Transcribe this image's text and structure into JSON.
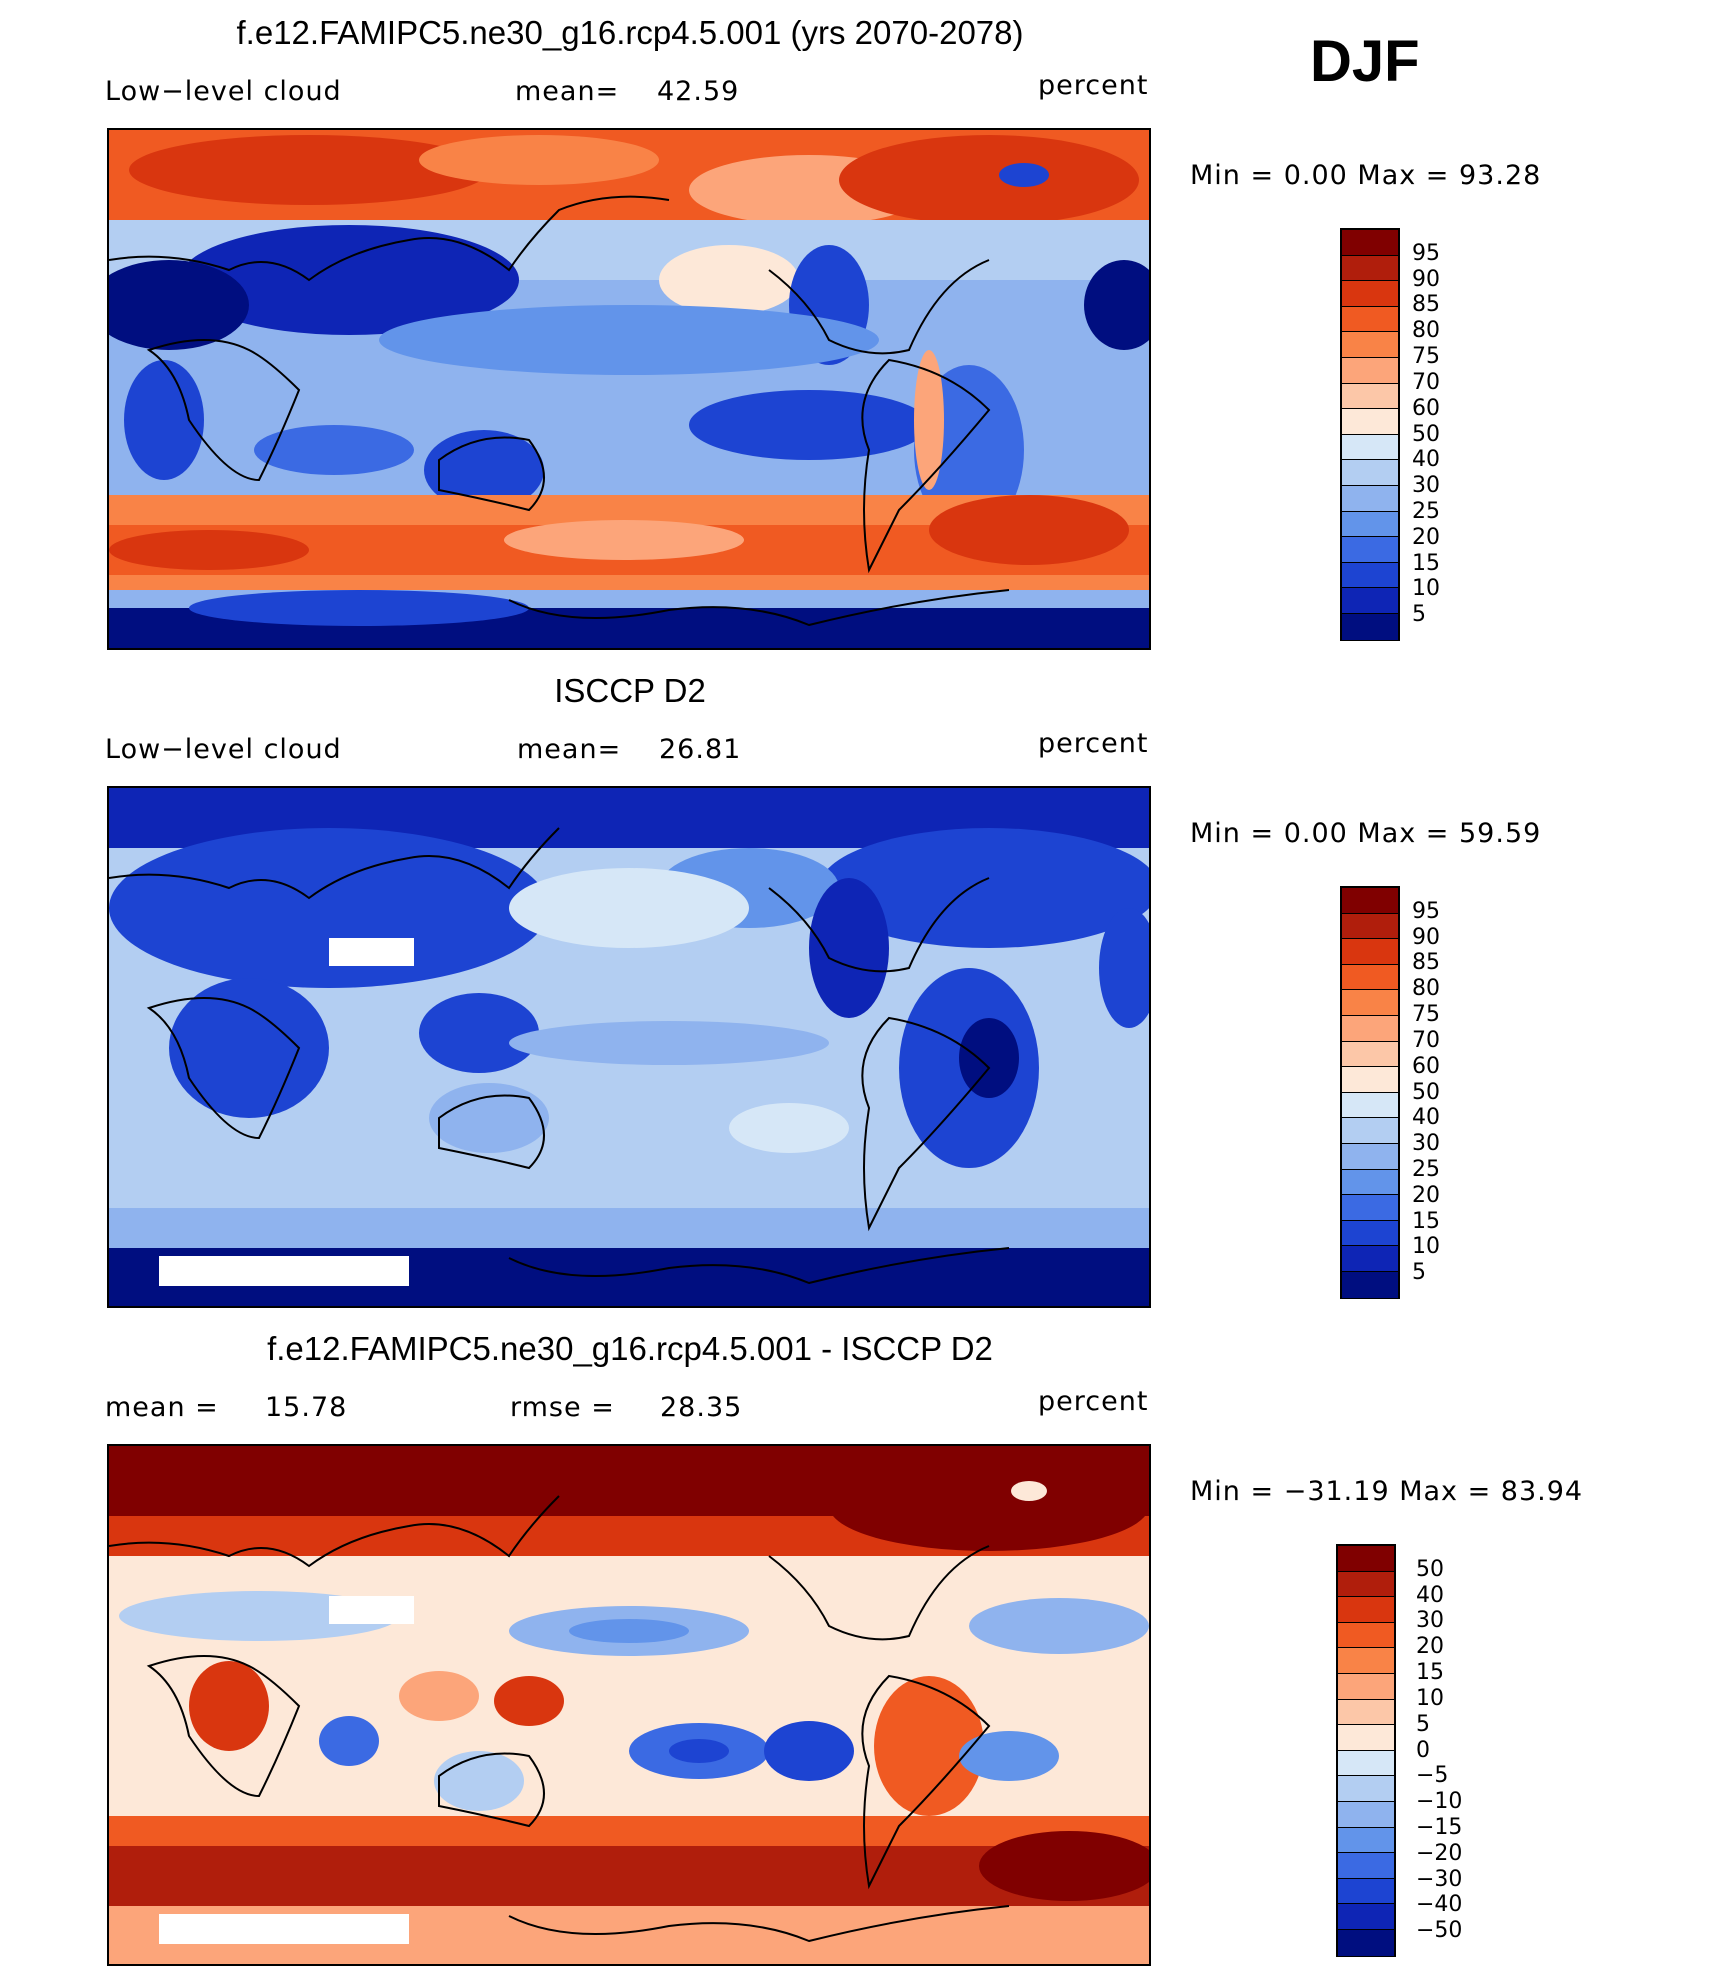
{
  "season": "DJF",
  "panels": [
    {
      "title": "f.e12.FAMIPC5.ne30_g16.rcp4.5.001 (yrs 2070-2078)",
      "left_label": "Low−level cloud",
      "mid_label": "mean=",
      "mid_value": "42.59",
      "right_label": "percent",
      "minmax": "Min =    0.00 Max =   93.28",
      "colorbar": {
        "labels": [
          "95",
          "90",
          "85",
          "80",
          "75",
          "70",
          "60",
          "50",
          "40",
          "30",
          "25",
          "20",
          "15",
          "10",
          "5"
        ],
        "colors": [
          "#800000",
          "#b01e0c",
          "#d9360f",
          "#f05a22",
          "#f98347",
          "#fca57a",
          "#fcc7a8",
          "#fde8d8",
          "#d6e7f7",
          "#b3cef2",
          "#8fb3ee",
          "#6294ea",
          "#3b6ae3",
          "#1d44d2",
          "#0e25b5",
          "#000e80"
        ]
      },
      "chart_data": {
        "type": "heatmap",
        "title": "f.e12.FAMIPC5.ne30_g16.rcp4.5.001 (yrs 2070-2078)",
        "variable": "Low-level cloud",
        "units": "percent",
        "mean": 42.59,
        "min": 0.0,
        "max": 93.28,
        "levels": [
          5,
          10,
          15,
          20,
          25,
          30,
          40,
          50,
          60,
          70,
          75,
          80,
          85,
          90,
          95
        ],
        "x": "longitude",
        "y": "latitude"
      }
    },
    {
      "title": "ISCCP D2",
      "left_label": "Low−level cloud",
      "mid_label": "mean=",
      "mid_value": "26.81",
      "right_label": "percent",
      "minmax": "Min =    0.00 Max =   59.59",
      "colorbar": {
        "labels": [
          "95",
          "90",
          "85",
          "80",
          "75",
          "70",
          "60",
          "50",
          "40",
          "30",
          "25",
          "20",
          "15",
          "10",
          "5"
        ],
        "colors": [
          "#800000",
          "#b01e0c",
          "#d9360f",
          "#f05a22",
          "#f98347",
          "#fca57a",
          "#fcc7a8",
          "#fde8d8",
          "#d6e7f7",
          "#b3cef2",
          "#8fb3ee",
          "#6294ea",
          "#3b6ae3",
          "#1d44d2",
          "#0e25b5",
          "#000e80"
        ]
      },
      "chart_data": {
        "type": "heatmap",
        "title": "ISCCP D2",
        "variable": "Low-level cloud",
        "units": "percent",
        "mean": 26.81,
        "min": 0.0,
        "max": 59.59,
        "levels": [
          5,
          10,
          15,
          20,
          25,
          30,
          40,
          50,
          60,
          70,
          75,
          80,
          85,
          90,
          95
        ],
        "x": "longitude",
        "y": "latitude"
      }
    },
    {
      "title": "f.e12.FAMIPC5.ne30_g16.rcp4.5.001 - ISCCP D2",
      "left_label": "mean =",
      "left_value": "15.78",
      "mid_label": "rmse =",
      "mid_value": "28.35",
      "right_label": "percent",
      "minmax": "Min = −31.19 Max =   83.94",
      "colorbar": {
        "labels": [
          "50",
          "40",
          "30",
          "20",
          "15",
          "10",
          "5",
          "0",
          "−5",
          "−10",
          "−15",
          "−20",
          "−30",
          "−40",
          "−50"
        ],
        "colors": [
          "#800000",
          "#b01e0c",
          "#d9360f",
          "#f05a22",
          "#f98347",
          "#fca57a",
          "#fcc7a8",
          "#fde8d8",
          "#d6e7f7",
          "#b3cef2",
          "#8fb3ee",
          "#6294ea",
          "#3b6ae3",
          "#1d44d2",
          "#0e25b5",
          "#000e80"
        ]
      },
      "chart_data": {
        "type": "heatmap",
        "title": "f.e12.FAMIPC5.ne30_g16.rcp4.5.001 - ISCCP D2",
        "variable": "Low-level cloud difference",
        "units": "percent",
        "mean": 15.78,
        "rmse": 28.35,
        "min": -31.19,
        "max": 83.94,
        "levels": [
          -50,
          -40,
          -30,
          -20,
          -15,
          -10,
          -5,
          0,
          5,
          10,
          15,
          20,
          30,
          40,
          50
        ],
        "x": "longitude",
        "y": "latitude"
      }
    }
  ]
}
